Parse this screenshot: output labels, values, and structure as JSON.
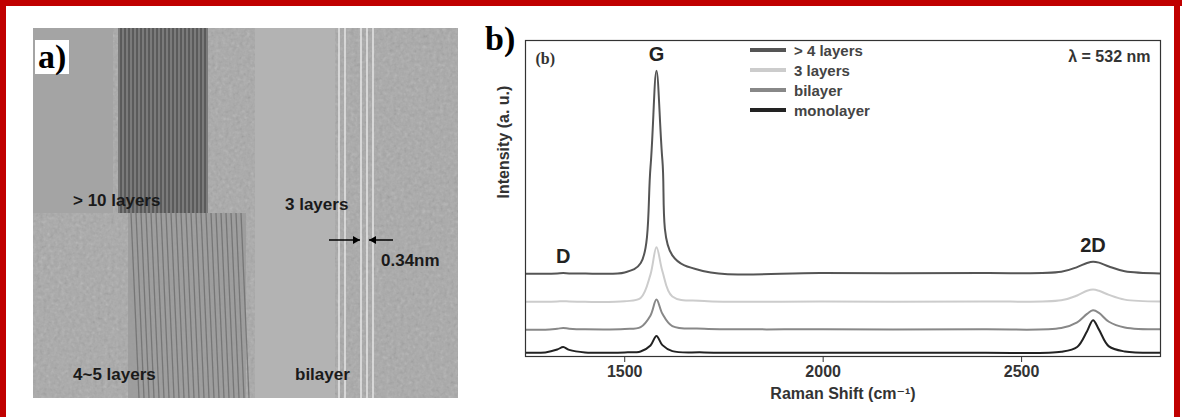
{
  "figure": {
    "panel_letters": [
      "a)",
      "b)"
    ],
    "micrograph": {
      "labels": [
        "> 10 layers",
        "4~5 layers",
        "3 layers",
        "bilayer",
        "0.34nm"
      ]
    }
  },
  "chart_data": {
    "type": "line",
    "x_label": "Raman Shift (cm⁻¹)",
    "y_label": "Intensity (a. u.)",
    "corner_labels": [
      "(b)",
      "λ = 532 nm"
    ],
    "peak_labels": [
      {
        "text": "D",
        "x": 1345
      },
      {
        "text": "G",
        "x": 1580
      },
      {
        "text": "2D",
        "x": 2680
      }
    ],
    "xlim": [
      1250,
      2850
    ],
    "xticks": [
      1500,
      2000,
      2500
    ],
    "ylim": [
      0,
      100
    ],
    "yticks": [],
    "tick_labels": "x",
    "grid": false,
    "legend": "top",
    "x": [
      1250,
      1300,
      1330,
      1345,
      1360,
      1400,
      1500,
      1540,
      1565,
      1580,
      1595,
      1620,
      1700,
      2000,
      2400,
      2600,
      2640,
      2665,
      2680,
      2695,
      2720,
      2760,
      2850
    ],
    "series": [
      {
        "name": "> 4 layers",
        "color": "#555555",
        "values": [
          26.2,
          26.2,
          26.3,
          26.4,
          26.3,
          26.3,
          26.6,
          29.5,
          60.0,
          90.4,
          62.0,
          32.0,
          27.0,
          26.4,
          26.4,
          26.8,
          28.3,
          29.6,
          30.0,
          29.7,
          28.5,
          27.0,
          26.3
        ]
      },
      {
        "name": "3 layers",
        "color": "#cccccc",
        "values": [
          17.3,
          17.3,
          17.4,
          17.5,
          17.4,
          17.3,
          17.5,
          18.5,
          26.0,
          34.6,
          27.0,
          19.0,
          17.6,
          17.4,
          17.4,
          17.8,
          19.3,
          20.8,
          21.2,
          20.8,
          19.5,
          18.0,
          17.4
        ]
      },
      {
        "name": "bilayer",
        "color": "#888888",
        "values": [
          8.5,
          8.5,
          8.8,
          9.0,
          8.8,
          8.6,
          8.7,
          9.3,
          13.0,
          18.0,
          13.5,
          9.6,
          8.8,
          8.6,
          8.6,
          9.0,
          10.8,
          13.5,
          14.6,
          13.8,
          11.0,
          9.2,
          8.6
        ]
      },
      {
        "name": "monolayer",
        "color": "#222222",
        "values": [
          1.2,
          1.3,
          2.2,
          3.0,
          2.1,
          1.3,
          1.3,
          1.6,
          3.5,
          6.5,
          3.6,
          1.7,
          1.3,
          1.2,
          1.2,
          1.5,
          3.0,
          8.0,
          11.5,
          8.5,
          3.2,
          1.6,
          1.2
        ]
      }
    ]
  }
}
